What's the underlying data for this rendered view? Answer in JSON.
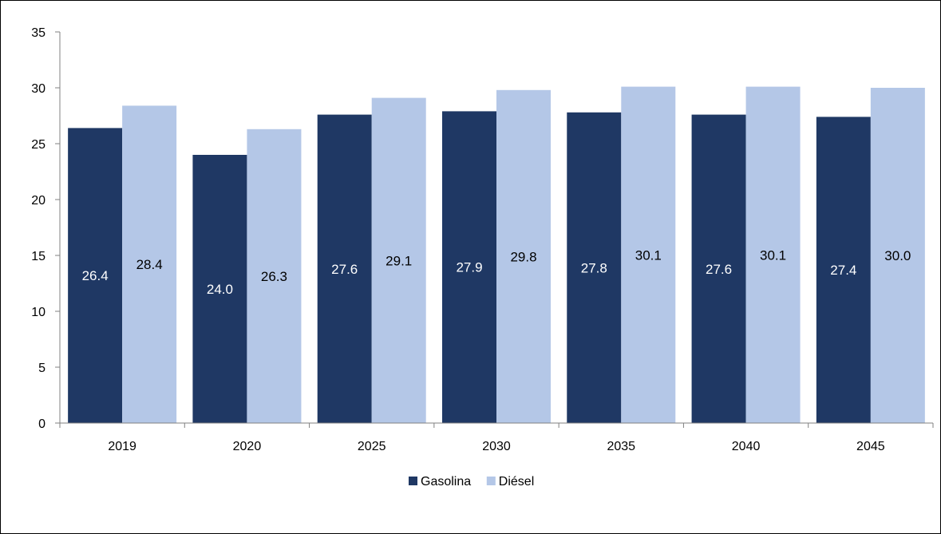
{
  "chart_data": {
    "type": "bar",
    "categories": [
      "2019",
      "2020",
      "2025",
      "2030",
      "2035",
      "2040",
      "2045"
    ],
    "series": [
      {
        "name": "Gasolina",
        "values": [
          26.4,
          24.0,
          27.6,
          27.9,
          27.8,
          27.6,
          27.4
        ],
        "color": "#1f3864",
        "label_color": "#ffffff"
      },
      {
        "name": "Diésel",
        "values": [
          28.4,
          26.3,
          29.1,
          29.8,
          30.1,
          30.1,
          30.0
        ],
        "color": "#b4c7e7",
        "label_color": "#000000"
      }
    ],
    "data_labels": [
      [
        "26.4",
        "24.0",
        "27.6",
        "27.9",
        "27.8",
        "27.6",
        "27.4"
      ],
      [
        "28.4",
        "26.3",
        "29.1",
        "29.8",
        "30.1",
        "30.1",
        "30.0"
      ]
    ],
    "title": "",
    "xlabel": "",
    "ylabel": "",
    "ylim": [
      0,
      35
    ],
    "yticks": [
      "0",
      "5",
      "10",
      "15",
      "20",
      "25",
      "30",
      "35"
    ],
    "grid": false,
    "legend_position": "bottom"
  }
}
